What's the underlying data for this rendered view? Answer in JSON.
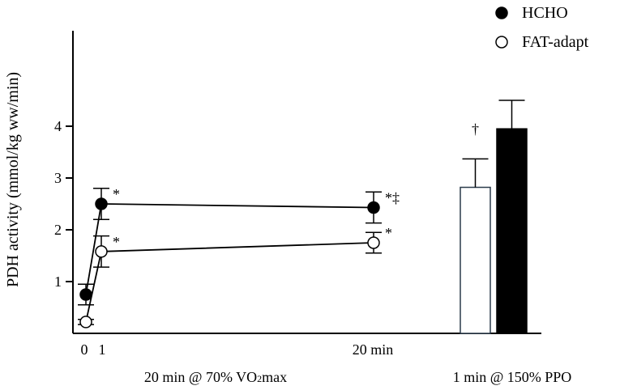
{
  "chart_data": {
    "type": "line",
    "ylabel": "PDH activity (mmol/kg ww/min)",
    "yticks": [
      1,
      2,
      3,
      4
    ],
    "ylim": [
      0,
      5.3
    ],
    "legend": [
      {
        "name": "HCHO",
        "marker": "filled-circle"
      },
      {
        "name": "FAT-adapt",
        "marker": "open-circle"
      }
    ],
    "legend_position": "top-right",
    "x_tick_labels": {
      "t0": "0",
      "t1": "1",
      "t20": "20 min"
    },
    "group_labels": {
      "left_prefix": "20 min @ 70% VO",
      "left_sub": "2",
      "left_suffix": "max",
      "right": "1 min @ 150% PPO"
    },
    "line_series": [
      {
        "name": "HCHO",
        "x": [
          0,
          1,
          20
        ],
        "y": [
          0.75,
          2.5,
          2.43
        ],
        "err": [
          0.2,
          0.3,
          0.3
        ],
        "annotations": [
          "",
          "*",
          "*‡"
        ],
        "color": "#000000",
        "filled": true
      },
      {
        "name": "FAT-adapt",
        "x": [
          0,
          1,
          20
        ],
        "y": [
          0.22,
          1.58,
          1.75
        ],
        "err": [
          0.05,
          0.3,
          0.2
        ],
        "annotations": [
          "",
          "*",
          "*"
        ],
        "color": "#ffffff",
        "filled": false
      }
    ],
    "bar_series": [
      {
        "name": "FAT-adapt",
        "value": 2.82,
        "err": 0.55,
        "annotation": "†",
        "fill": "#ffffff"
      },
      {
        "name": "HCHO",
        "value": 3.95,
        "err": 0.55,
        "annotation": "",
        "fill": "#000000"
      }
    ]
  }
}
